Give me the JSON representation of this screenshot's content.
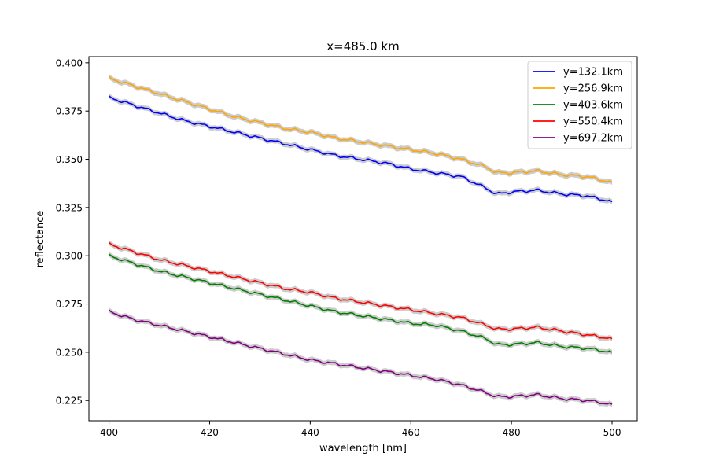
{
  "chart_data": {
    "type": "line",
    "title": "x=485.0 km",
    "xlabel": "wavelength [nm]",
    "ylabel": "reflectance",
    "xlim": [
      396,
      505
    ],
    "ylim": [
      0.2145,
      0.4032
    ],
    "xticks": [
      400,
      420,
      440,
      460,
      480,
      500
    ],
    "xtick_labels": [
      "400",
      "420",
      "440",
      "460",
      "480",
      "500"
    ],
    "yticks": [
      0.225,
      0.25,
      0.275,
      0.3,
      0.325,
      0.35,
      0.375,
      0.4
    ],
    "ytick_labels": [
      "0.225",
      "0.250",
      "0.275",
      "0.300",
      "0.325",
      "0.350",
      "0.375",
      "0.400"
    ],
    "grid": false,
    "legend_position": "top-right",
    "band_color": "#cccccc",
    "x": [
      400,
      405,
      410,
      415,
      420,
      425,
      430,
      435,
      440,
      445,
      450,
      455,
      460,
      465,
      470,
      475,
      477,
      480,
      485,
      490,
      495,
      500
    ],
    "series": [
      {
        "name": "y=132.1km",
        "color": "#0000ff",
        "values": [
          0.382,
          0.378,
          0.374,
          0.37,
          0.367,
          0.364,
          0.361,
          0.358,
          0.355,
          0.352,
          0.35,
          0.348,
          0.345,
          0.343,
          0.341,
          0.335,
          0.332,
          0.333,
          0.334,
          0.332,
          0.331,
          0.328
        ]
      },
      {
        "name": "y=256.9km",
        "color": "#ffa500",
        "values": [
          0.392,
          0.388,
          0.384,
          0.38,
          0.376,
          0.372,
          0.369,
          0.366,
          0.364,
          0.361,
          0.359,
          0.357,
          0.355,
          0.353,
          0.35,
          0.346,
          0.343,
          0.343,
          0.344,
          0.342,
          0.341,
          0.338
        ]
      },
      {
        "name": "y=403.6km",
        "color": "#008000",
        "values": [
          0.3,
          0.296,
          0.292,
          0.289,
          0.286,
          0.283,
          0.28,
          0.277,
          0.274,
          0.271,
          0.269,
          0.267,
          0.265,
          0.264,
          0.261,
          0.257,
          0.254,
          0.254,
          0.255,
          0.253,
          0.252,
          0.25
        ]
      },
      {
        "name": "y=550.4km",
        "color": "#ff0000",
        "values": [
          0.306,
          0.302,
          0.298,
          0.295,
          0.292,
          0.289,
          0.286,
          0.283,
          0.281,
          0.278,
          0.276,
          0.274,
          0.272,
          0.27,
          0.268,
          0.264,
          0.262,
          0.262,
          0.263,
          0.261,
          0.259,
          0.257
        ]
      },
      {
        "name": "y=697.2km",
        "color": "#800080",
        "values": [
          0.271,
          0.267,
          0.264,
          0.261,
          0.258,
          0.255,
          0.252,
          0.249,
          0.246,
          0.244,
          0.242,
          0.24,
          0.238,
          0.236,
          0.233,
          0.229,
          0.227,
          0.227,
          0.228,
          0.226,
          0.225,
          0.223
        ]
      }
    ]
  }
}
